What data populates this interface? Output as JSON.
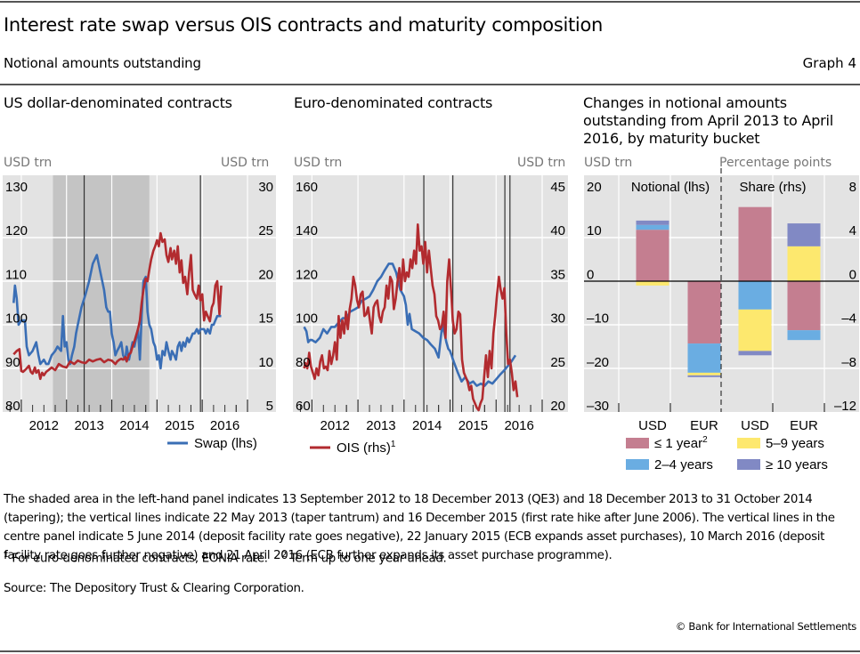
{
  "header": {
    "title": "Interest rate swap versus OIS contracts and maturity composition",
    "subtitle": "Notional amounts outstanding",
    "graph_number": "Graph 4"
  },
  "colors": {
    "swap": "#3a6eb5",
    "ois": "#b22b2f",
    "le1y": "#c47e90",
    "y2_4": "#6aade2",
    "y5_9": "#fde86e",
    "ge10y": "#8189c4",
    "plot_bg": "#e3e3e3",
    "shade": "#c4c4c4",
    "grid": "#ffffff"
  },
  "chart_data": [
    {
      "id": "usd",
      "type": "line",
      "title": "US dollar-denominated contracts",
      "ylabel_left": "USD trn",
      "ylabel_right": "USD trn",
      "ylim_left": [
        80,
        130
      ],
      "ylim_right": [
        5,
        30
      ],
      "yticks_left": [
        "130",
        "120",
        "110",
        "100",
        "90",
        "80"
      ],
      "yticks_right": [
        "30",
        "25",
        "20",
        "15",
        "10",
        "5"
      ],
      "xticks": [
        "2012",
        "2013",
        "2014",
        "2015",
        "2016"
      ],
      "xlim": [
        2011.5,
        2017.0
      ],
      "grid": true,
      "shaded_ranges": [
        [
          2012.7,
          2013.96
        ],
        [
          2013.96,
          2014.83
        ]
      ],
      "vlines": [
        2013.39,
        2015.96
      ],
      "legend": [
        {
          "label": "Swap (lhs)",
          "series": "swap"
        }
      ],
      "legend_position": "bottom-right",
      "series": [
        {
          "name": "Swap (lhs)",
          "axis": "left",
          "color_key": "swap",
          "x": [
            2011.83,
            2011.86,
            2011.9,
            2011.94,
            2012.0,
            2012.08,
            2012.12,
            2012.17,
            2012.25,
            2012.33,
            2012.38,
            2012.42,
            2012.5,
            2012.55,
            2012.6,
            2012.67,
            2012.75,
            2012.8,
            2012.88,
            2012.92,
            2012.96,
            2013.0,
            2013.04,
            2013.08,
            2013.12,
            2013.17,
            2013.21,
            2013.25,
            2013.33,
            2013.42,
            2013.5,
            2013.58,
            2013.67,
            2013.75,
            2013.83,
            2013.88,
            2013.92,
            2013.96,
            2014.0,
            2014.04,
            2014.08,
            2014.12,
            2014.17,
            2014.21,
            2014.25,
            2014.3,
            2014.33,
            2014.38,
            2014.42,
            2014.46,
            2014.5,
            2014.54,
            2014.58,
            2014.62,
            2014.66,
            2014.7,
            2014.75,
            2014.79,
            2014.83,
            2014.87,
            2014.92,
            2014.96,
            2015.0,
            2015.04,
            2015.08,
            2015.12,
            2015.17,
            2015.21,
            2015.25,
            2015.3,
            2015.33,
            2015.38,
            2015.42,
            2015.46,
            2015.5,
            2015.54,
            2015.58,
            2015.62,
            2015.67,
            2015.71,
            2015.75,
            2015.79,
            2015.83,
            2015.88,
            2015.92,
            2015.96,
            2016.0,
            2016.04,
            2016.08,
            2016.12,
            2016.17,
            2016.21,
            2016.25,
            2016.29,
            2016.33,
            2016.38,
            2016.42
          ],
          "y": [
            105,
            109,
            106,
            100,
            101,
            101,
            95,
            93,
            94,
            96,
            93,
            91,
            92,
            91,
            91,
            93,
            94,
            95,
            94,
            102,
            95,
            96,
            92,
            91,
            93,
            95,
            98,
            100,
            104,
            107,
            110,
            114,
            116,
            112,
            108,
            104,
            103,
            103,
            98,
            96,
            93,
            94,
            95,
            96,
            93,
            92,
            95,
            92,
            94,
            96,
            95,
            97,
            99,
            92,
            102,
            110,
            111,
            103,
            100,
            99,
            96,
            95,
            92,
            93,
            90,
            94,
            93,
            96,
            94,
            92,
            94,
            93,
            92,
            95,
            96,
            94,
            96,
            95,
            97,
            96,
            97,
            98,
            98,
            99,
            98,
            99,
            99,
            99,
            98,
            99,
            98,
            100,
            100,
            101,
            102,
            102,
            102
          ]
        },
        {
          "name": "OIS (rhs)",
          "axis": "right",
          "color_key": "ois",
          "x": [
            2011.83,
            2011.9,
            2011.96,
            2012.0,
            2012.04,
            2012.08,
            2012.12,
            2012.17,
            2012.21,
            2012.25,
            2012.3,
            2012.33,
            2012.38,
            2012.42,
            2012.46,
            2012.5,
            2012.55,
            2012.6,
            2012.67,
            2012.75,
            2012.83,
            2012.92,
            2013.0,
            2013.08,
            2013.17,
            2013.25,
            2013.33,
            2013.42,
            2013.5,
            2013.58,
            2013.67,
            2013.75,
            2013.83,
            2013.92,
            2014.0,
            2014.08,
            2014.12,
            2014.17,
            2014.21,
            2014.25,
            2014.3,
            2014.33,
            2014.38,
            2014.42,
            2014.46,
            2014.5,
            2014.54,
            2014.58,
            2014.62,
            2014.66,
            2014.7,
            2014.75,
            2014.79,
            2014.83,
            2014.87,
            2014.92,
            2014.96,
            2015.0,
            2015.04,
            2015.08,
            2015.12,
            2015.17,
            2015.21,
            2015.25,
            2015.3,
            2015.33,
            2015.38,
            2015.42,
            2015.46,
            2015.5,
            2015.54,
            2015.58,
            2015.62,
            2015.67,
            2015.71,
            2015.75,
            2015.79,
            2015.83,
            2015.88,
            2015.92,
            2015.96,
            2016.0,
            2016.04,
            2016.08,
            2016.12,
            2016.17,
            2016.21,
            2016.25,
            2016.29,
            2016.33,
            2016.38,
            2016.42
          ],
          "y": [
            11.6,
            12.0,
            12.2,
            9.7,
            9.6,
            9.8,
            10.0,
            10.3,
            9.6,
            9.4,
            10.1,
            9.5,
            9.8,
            8.8,
            9.5,
            9.2,
            9.6,
            9.8,
            10.1,
            9.8,
            10.5,
            10.2,
            10.1,
            10.8,
            10.5,
            10.9,
            10.7,
            10.6,
            11.0,
            10.8,
            11.0,
            11.1,
            10.7,
            11.0,
            10.9,
            10.5,
            10.8,
            11.0,
            11.1,
            11.0,
            11.3,
            10.8,
            11.6,
            11.8,
            12.5,
            13.1,
            13.8,
            14.5,
            15.5,
            17.5,
            19.0,
            20.3,
            20.0,
            21.3,
            22.5,
            23.5,
            24.0,
            24.7,
            24.0,
            25.5,
            24.5,
            24.8,
            23.0,
            22.2,
            23.8,
            22.5,
            23.5,
            22.0,
            24.0,
            21.0,
            22.4,
            19.8,
            20.5,
            18.5,
            21.0,
            23.0,
            19.0,
            18.5,
            18.0,
            19.5,
            17.8,
            18.5,
            15.5,
            16.5,
            16.0,
            15.4,
            17.0,
            17.5,
            19.5,
            20.0,
            16.2,
            19.5
          ]
        }
      ]
    },
    {
      "id": "eur",
      "type": "line",
      "title": "Euro-denominated contracts",
      "ylabel_left": "USD trn",
      "ylabel_right": "USD trn",
      "ylim_left": [
        60,
        160
      ],
      "ylim_right": [
        20,
        45
      ],
      "yticks_left": [
        "160",
        "140",
        "120",
        "100",
        "80",
        "60"
      ],
      "yticks_right": [
        "45",
        "40",
        "35",
        "30",
        "25",
        "20"
      ],
      "xticks": [
        "2012",
        "2013",
        "2014",
        "2015",
        "2016"
      ],
      "xlim": [
        2011.5,
        2017.0
      ],
      "grid": true,
      "vlines": [
        2014.43,
        2015.06,
        2016.19,
        2016.3
      ],
      "legend": [
        {
          "label": "OIS (rhs)",
          "superscript": "1",
          "series": "ois"
        }
      ],
      "legend_position": "bottom-left",
      "series": [
        {
          "name": "Swap (lhs)",
          "axis": "left",
          "color_key": "swap",
          "x": [
            2011.83,
            2011.88,
            2011.92,
            2011.96,
            2012.0,
            2012.08,
            2012.17,
            2012.25,
            2012.33,
            2012.42,
            2012.5,
            2012.58,
            2012.67,
            2012.75,
            2012.83,
            2012.92,
            2013.0,
            2013.08,
            2013.17,
            2013.25,
            2013.33,
            2013.42,
            2013.5,
            2013.58,
            2013.67,
            2013.75,
            2013.83,
            2013.92,
            2014.0,
            2014.04,
            2014.08,
            2014.12,
            2014.17,
            2014.25,
            2014.33,
            2014.42,
            2014.5,
            2014.58,
            2014.67,
            2014.75,
            2014.83,
            2014.88,
            2014.92,
            2014.96,
            2015.0,
            2015.08,
            2015.17,
            2015.25,
            2015.33,
            2015.42,
            2015.5,
            2015.58,
            2015.67,
            2015.75,
            2015.83,
            2015.92,
            2016.0,
            2016.08,
            2016.17,
            2016.25,
            2016.33,
            2016.42
          ],
          "y": [
            99,
            97,
            92,
            93,
            93,
            92,
            94,
            98,
            96,
            99,
            99,
            101,
            103,
            103,
            106,
            107,
            108,
            111,
            112,
            113,
            116,
            120,
            122,
            125,
            128,
            128,
            124,
            116,
            113,
            109,
            100,
            105,
            98,
            97,
            96,
            94,
            93,
            91,
            89,
            85,
            100,
            96,
            92,
            89,
            88,
            83,
            78,
            74,
            76,
            73,
            74,
            72,
            73,
            72,
            74,
            73,
            75,
            77,
            79,
            81,
            83,
            86
          ]
        },
        {
          "name": "OIS (rhs)",
          "axis": "right",
          "color_key": "ois",
          "x": [
            2011.83,
            2011.86,
            2011.9,
            2011.94,
            2011.98,
            2012.02,
            2012.06,
            2012.1,
            2012.14,
            2012.18,
            2012.22,
            2012.26,
            2012.3,
            2012.34,
            2012.38,
            2012.42,
            2012.46,
            2012.5,
            2012.54,
            2012.58,
            2012.62,
            2012.66,
            2012.7,
            2012.74,
            2012.78,
            2012.82,
            2012.86,
            2012.9,
            2012.94,
            2012.98,
            2013.02,
            2013.06,
            2013.1,
            2013.14,
            2013.18,
            2013.22,
            2013.26,
            2013.3,
            2013.34,
            2013.38,
            2013.42,
            2013.46,
            2013.5,
            2013.54,
            2013.58,
            2013.62,
            2013.66,
            2013.7,
            2013.74,
            2013.78,
            2013.82,
            2013.86,
            2013.9,
            2013.94,
            2013.98,
            2014.02,
            2014.06,
            2014.1,
            2014.14,
            2014.18,
            2014.22,
            2014.26,
            2014.3,
            2014.34,
            2014.38,
            2014.42,
            2014.46,
            2014.5,
            2014.54,
            2014.58,
            2014.62,
            2014.66,
            2014.7,
            2014.74,
            2014.78,
            2014.82,
            2014.86,
            2014.9,
            2014.94,
            2014.98,
            2015.02,
            2015.06,
            2015.1,
            2015.14,
            2015.18,
            2015.22,
            2015.26,
            2015.3,
            2015.34,
            2015.38,
            2015.42,
            2015.46,
            2015.5,
            2015.54,
            2015.58,
            2015.62,
            2015.66,
            2015.7,
            2015.74,
            2015.78,
            2015.82,
            2015.86,
            2015.9,
            2015.94,
            2015.98,
            2016.02,
            2016.06,
            2016.1,
            2016.14,
            2016.18,
            2016.22,
            2016.26,
            2016.3,
            2016.34,
            2016.38,
            2016.42,
            2016.46
          ],
          "y": [
            25.0,
            25.6,
            25.0,
            26.8,
            25.2,
            24.5,
            23.8,
            25.0,
            24.2,
            25.8,
            26.5,
            25.0,
            25.2,
            24.8,
            27.0,
            25.5,
            26.5,
            28.0,
            26.0,
            31.0,
            28.5,
            30.5,
            29.0,
            31.5,
            29.5,
            31.8,
            33.0,
            35.5,
            34.5,
            32.8,
            32.0,
            33.5,
            33.8,
            31.0,
            31.2,
            32.0,
            30.5,
            29.0,
            32.0,
            32.5,
            32.8,
            31.0,
            30.3,
            31.5,
            32.0,
            34.5,
            33.0,
            35.5,
            35.0,
            31.8,
            33.0,
            35.0,
            36.5,
            34.0,
            37.5,
            35.0,
            36.0,
            35.5,
            37.5,
            36.5,
            38.5,
            37.0,
            41.5,
            38.5,
            39.0,
            37.0,
            39.5,
            36.0,
            38.5,
            36.5,
            34.5,
            33.5,
            31.0,
            30.5,
            29.5,
            29.8,
            31.5,
            28.5,
            35.0,
            37.5,
            34.0,
            30.5,
            29.0,
            29.5,
            31.5,
            31.2,
            26.0,
            24.5,
            24.0,
            23.5,
            22.5,
            23.0,
            21.5,
            21.0,
            20.5,
            20.2,
            21.0,
            21.5,
            24.0,
            26.5,
            24.0,
            27.0,
            25.0,
            29.0,
            31.0,
            33.5,
            35.5,
            34.0,
            33.0,
            34.2,
            29.0,
            25.5,
            26.0,
            24.5,
            22.5,
            23.5,
            21.7
          ]
        }
      ]
    },
    {
      "id": "maturity",
      "type": "bar",
      "stacked": true,
      "title": "Changes in notional amounts outstanding from April 2013 to April 2016, by maturity bucket",
      "ylabel_left": "USD trn",
      "ylabel_right": "Percentage points",
      "ylim_left": [
        -30,
        20
      ],
      "ylim_right": [
        -12,
        8
      ],
      "yticks_left": [
        "20",
        "10",
        "0",
        "–10",
        "–20",
        "–30"
      ],
      "yticks_right": [
        "8",
        "4",
        "0",
        "–4",
        "–8",
        "–12"
      ],
      "section_labels": [
        "Notional (lhs)",
        "Share (rhs)"
      ],
      "categories": [
        "USD",
        "EUR",
        "USD",
        "EUR"
      ],
      "category_axis": [
        "left",
        "left",
        "right",
        "right"
      ],
      "grid": true,
      "legend_position": "bottom",
      "series": [
        {
          "name": "≤ 1 year",
          "superscript": "2",
          "color_key": "le1y",
          "values": [
            11.8,
            -14.3,
            6.8,
            -4.5
          ]
        },
        {
          "name": "2–4 years",
          "color_key": "y2_4",
          "values": [
            1.1,
            -6.7,
            -2.6,
            -0.9
          ]
        },
        {
          "name": "5–9 years",
          "color_key": "y5_9",
          "values": [
            -1.0,
            -0.6,
            -3.8,
            3.2
          ]
        },
        {
          "name": "≥ 10 years",
          "color_key": "ge10y",
          "values": [
            1.0,
            -0.4,
            -0.4,
            2.1
          ]
        }
      ]
    }
  ],
  "notes": "The shaded area in the left-hand panel indicates 13 September 2012 to 18 December 2013 (QE3) and 18 December 2013 to 31 October 2014 (tapering); the vertical lines indicate 22 May 2013 (taper tantrum) and 16 December 2015 (first rate hike after June 2006). The vertical lines in the centre panel indicate 5 June 2014 (deposit facility rate goes negative), 22 January 2015 (ECB expands asset purchases), 10 March 2016 (deposit facility rate goes further negative) and 21 April 2016 (ECB further expands its asset purchase programme).",
  "footnotes": [
    {
      "mark": "1",
      "text": "For euro-denominated contracts, EONIA rate."
    },
    {
      "mark": "2",
      "text": "Term up to one year ahead."
    }
  ],
  "source": "Source: The Depository Trust & Clearing Corporation.",
  "copyright": "© Bank for International Settlements"
}
